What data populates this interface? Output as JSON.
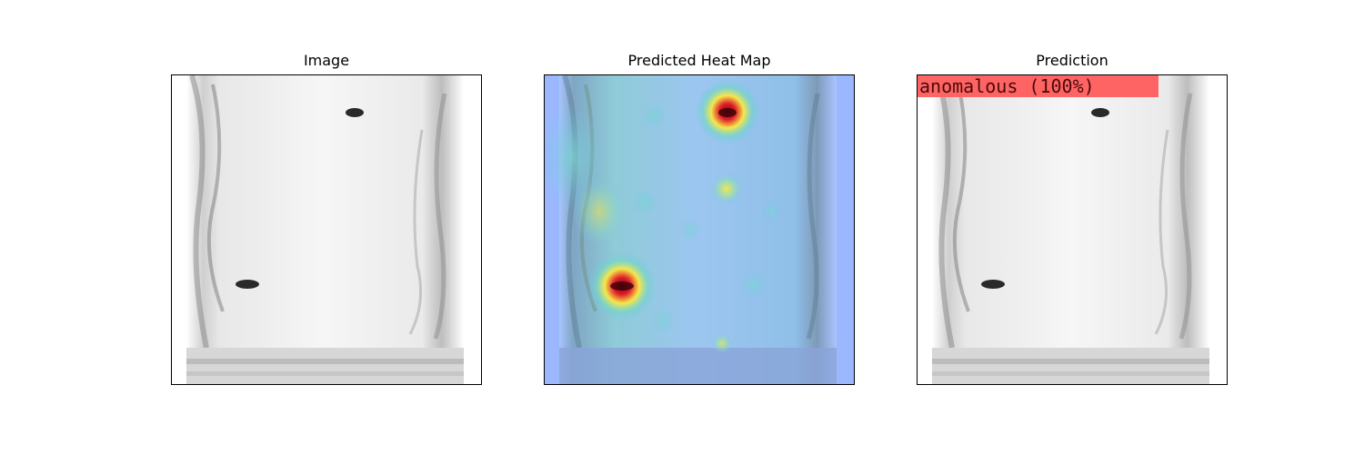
{
  "panels": [
    {
      "title": "Image"
    },
    {
      "title": "Predicted Heat Map"
    },
    {
      "title": "Prediction"
    }
  ],
  "prediction": {
    "label": "anomalous (100%)",
    "label_color": "#ff6464"
  },
  "colors": {
    "heatmap_background": "#9bb8ff",
    "hot": "#d4202a",
    "warm": "#f5e84a",
    "cool": "#74c6e6",
    "glass": "#f4f4f4",
    "glass_edge": "#9a9a9a",
    "defect": "#2a2a2a"
  }
}
